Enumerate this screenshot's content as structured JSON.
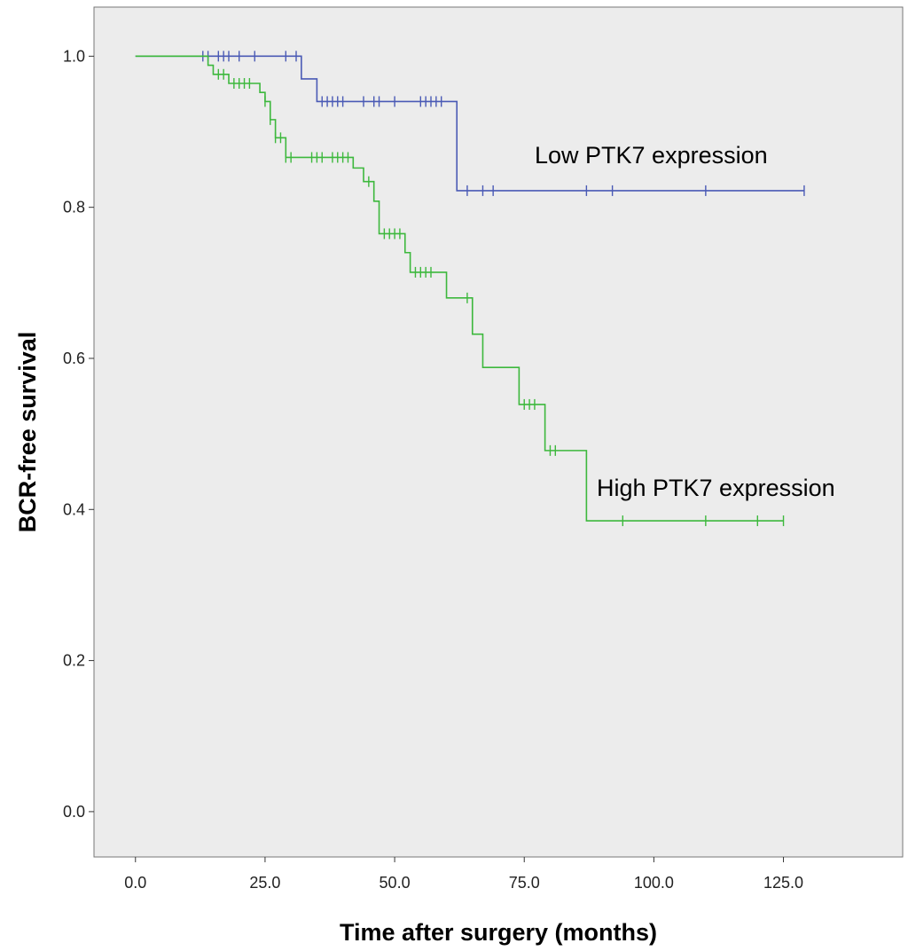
{
  "chart_data": {
    "type": "line",
    "subtype": "kaplan-meier step curves",
    "xlabel": "Time after surgery (months)",
    "ylabel": "BCR-free survival",
    "xlim": [
      -8,
      148
    ],
    "ylim": [
      -0.06,
      1.065
    ],
    "x_ticks": [
      0,
      25,
      50,
      75,
      100,
      125
    ],
    "x_tick_labels": [
      "0.0",
      "25.0",
      "50.0",
      "75.0",
      "100.0",
      "125.0"
    ],
    "y_ticks": [
      0,
      0.2,
      0.4,
      0.6,
      0.8,
      1.0
    ],
    "y_tick_labels": [
      "0.0",
      "0.2",
      "0.4",
      "0.6",
      "0.8",
      "1.0"
    ],
    "grid": false,
    "background": "#ececec",
    "series": [
      {
        "name": "Low PTK7 expression",
        "label": "Low PTK7 expression",
        "color": "#4a5ab5",
        "steps": [
          [
            0,
            1.0
          ],
          [
            32,
            0.97
          ],
          [
            35,
            0.94
          ],
          [
            62,
            0.822
          ]
        ],
        "end_x": 129,
        "censors": [
          13,
          14,
          16,
          17,
          18,
          20,
          23,
          29,
          31,
          36,
          37,
          38,
          39,
          40,
          44,
          46,
          47,
          50,
          55,
          56,
          57,
          58,
          59,
          64,
          67,
          69,
          87,
          92,
          110,
          129
        ]
      },
      {
        "name": "High PTK7 expression",
        "label": "High PTK7 expression",
        "color": "#3db83d",
        "steps": [
          [
            0,
            1.0
          ],
          [
            14,
            0.988
          ],
          [
            15,
            0.976
          ],
          [
            18,
            0.964
          ],
          [
            24,
            0.952
          ],
          [
            25,
            0.94
          ],
          [
            26,
            0.916
          ],
          [
            27,
            0.892
          ],
          [
            29,
            0.866
          ],
          [
            42,
            0.852
          ],
          [
            44,
            0.834
          ],
          [
            46,
            0.808
          ],
          [
            47,
            0.765
          ],
          [
            52,
            0.74
          ],
          [
            53,
            0.714
          ],
          [
            60,
            0.68
          ],
          [
            65,
            0.632
          ],
          [
            67,
            0.588
          ],
          [
            74,
            0.539
          ],
          [
            79,
            0.478
          ],
          [
            87,
            0.385
          ]
        ],
        "end_x": 125,
        "censors": [
          16,
          17,
          19,
          20,
          21,
          22,
          25,
          26,
          27,
          28,
          29,
          30,
          34,
          35,
          36,
          38,
          39,
          40,
          41,
          45,
          48,
          49,
          50,
          51,
          54,
          55,
          56,
          57,
          64,
          75,
          76,
          77,
          80,
          81,
          94,
          110,
          120,
          125
        ]
      }
    ]
  }
}
